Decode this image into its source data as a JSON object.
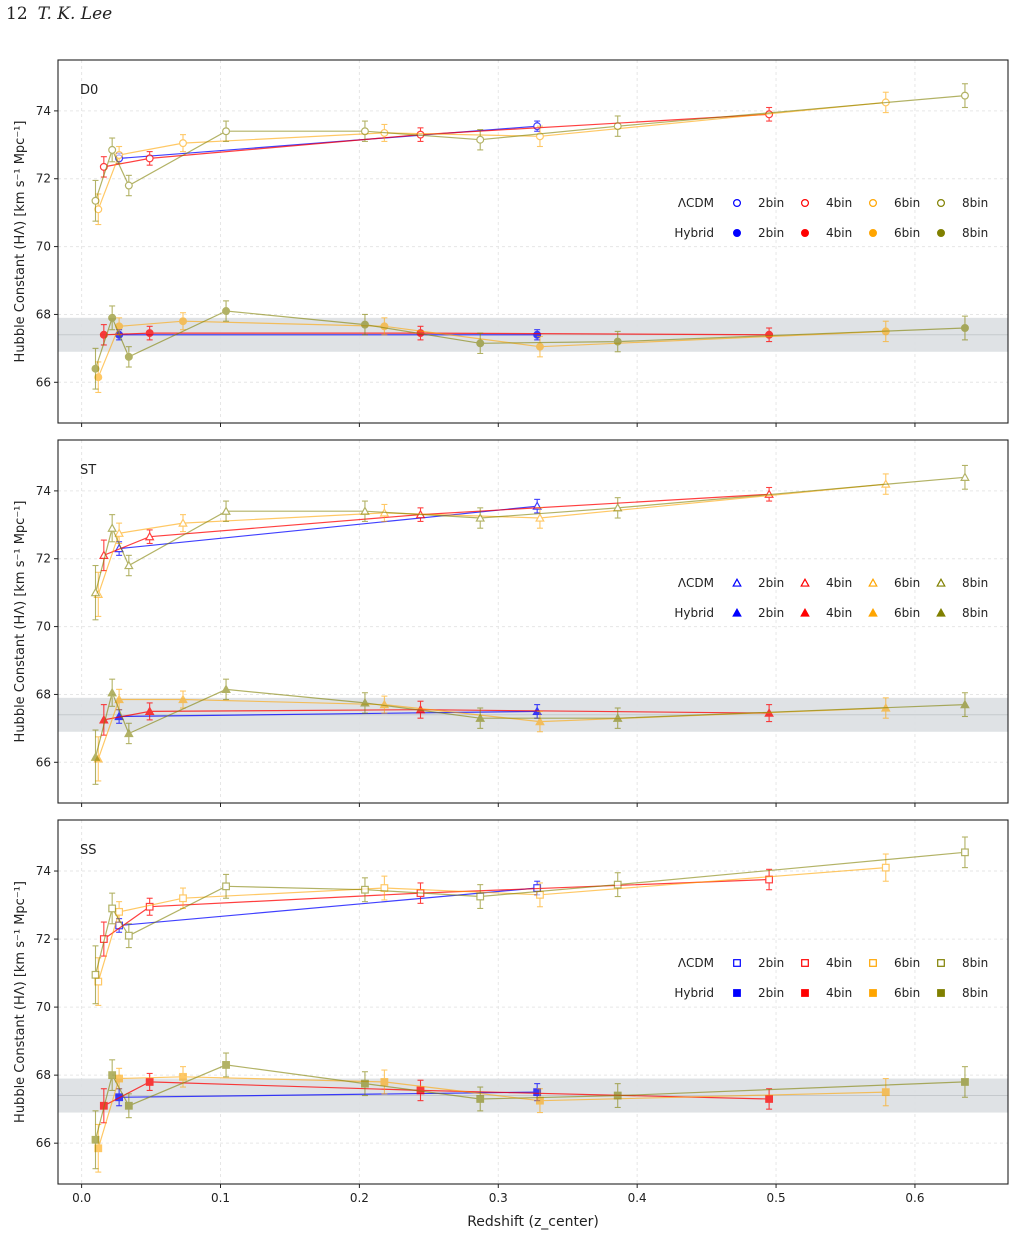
{
  "header": {
    "page_number": "12",
    "author": "T. K. Lee"
  },
  "colors": {
    "2bin": "#0000ff",
    "4bin": "#ff0000",
    "6bin": "#ffa500",
    "8bin": "#808000",
    "band": "#dcdfe2",
    "grid": "#e6e6e6"
  },
  "legend": {
    "row_labels": [
      "ΛCDM",
      "Hybrid"
    ],
    "bins": [
      "2bin",
      "4bin",
      "6bin",
      "8bin"
    ]
  },
  "chart_data": [
    {
      "type": "scatter",
      "panel_label": "D0",
      "marker": "circle",
      "xlabel": "Redshift (z_center)",
      "ylabel": "Hubble Constant (HΛ) [km s⁻¹ Mpc⁻¹]",
      "xlim": [
        -0.017,
        0.667
      ],
      "ylim": [
        64.8,
        75.5
      ],
      "xticks": [
        "0.0",
        "0.1",
        "0.2",
        "0.3",
        "0.4",
        "0.5",
        "0.6"
      ],
      "yticks": [
        "66",
        "68",
        "70",
        "72",
        "74"
      ],
      "grid": true,
      "reference_band": [
        66.9,
        67.9
      ],
      "legend_position": "right",
      "series": [
        {
          "name": "ΛCDM 2bin",
          "bin": "2bin",
          "model": "LCDM",
          "x": [
            0.027,
            0.328
          ],
          "y": [
            72.6,
            73.55
          ],
          "err": [
            0.15,
            0.15
          ]
        },
        {
          "name": "ΛCDM 4bin",
          "bin": "4bin",
          "model": "LCDM",
          "x": [
            0.016,
            0.049,
            0.244,
            0.495
          ],
          "y": [
            72.35,
            72.6,
            73.3,
            73.9
          ],
          "err": [
            0.3,
            0.2,
            0.2,
            0.2
          ]
        },
        {
          "name": "ΛCDM 6bin",
          "bin": "6bin",
          "model": "LCDM",
          "x": [
            0.012,
            0.027,
            0.073,
            0.218,
            0.33,
            0.579
          ],
          "y": [
            71.1,
            72.7,
            73.05,
            73.35,
            73.25,
            74.25
          ],
          "err": [
            0.45,
            0.25,
            0.25,
            0.25,
            0.3,
            0.3
          ]
        },
        {
          "name": "ΛCDM 8bin",
          "bin": "8bin",
          "model": "LCDM",
          "x": [
            0.01,
            0.022,
            0.034,
            0.104,
            0.204,
            0.287,
            0.386,
            0.636
          ],
          "y": [
            71.35,
            72.85,
            71.8,
            73.4,
            73.4,
            73.15,
            73.55,
            74.45
          ],
          "err": [
            0.6,
            0.35,
            0.3,
            0.3,
            0.3,
            0.3,
            0.3,
            0.35
          ]
        },
        {
          "name": "Hybrid 2bin",
          "bin": "2bin",
          "model": "Hybrid",
          "x": [
            0.027,
            0.328
          ],
          "y": [
            67.4,
            67.4
          ],
          "err": [
            0.15,
            0.15
          ]
        },
        {
          "name": "Hybrid 4bin",
          "bin": "4bin",
          "model": "Hybrid",
          "x": [
            0.016,
            0.049,
            0.244,
            0.495
          ],
          "y": [
            67.4,
            67.45,
            67.45,
            67.4
          ],
          "err": [
            0.3,
            0.2,
            0.2,
            0.2
          ]
        },
        {
          "name": "Hybrid 6bin",
          "bin": "6bin",
          "model": "Hybrid",
          "x": [
            0.012,
            0.027,
            0.073,
            0.218,
            0.33,
            0.579
          ],
          "y": [
            66.15,
            67.65,
            67.8,
            67.65,
            67.05,
            67.5
          ],
          "err": [
            0.45,
            0.25,
            0.25,
            0.25,
            0.3,
            0.3
          ]
        },
        {
          "name": "Hybrid 8bin",
          "bin": "8bin",
          "model": "Hybrid",
          "x": [
            0.01,
            0.022,
            0.034,
            0.104,
            0.204,
            0.287,
            0.386,
            0.636
          ],
          "y": [
            66.4,
            67.9,
            66.75,
            68.1,
            67.7,
            67.15,
            67.2,
            67.6
          ],
          "err": [
            0.6,
            0.35,
            0.3,
            0.3,
            0.3,
            0.3,
            0.3,
            0.35
          ]
        }
      ]
    },
    {
      "type": "scatter",
      "panel_label": "ST",
      "marker": "triangle",
      "xlabel": "Redshift (z_center)",
      "ylabel": "Hubble Constant (HΛ) [km s⁻¹ Mpc⁻¹]",
      "xlim": [
        -0.017,
        0.667
      ],
      "ylim": [
        64.8,
        75.5
      ],
      "xticks": [
        "0.0",
        "0.1",
        "0.2",
        "0.3",
        "0.4",
        "0.5",
        "0.6"
      ],
      "yticks": [
        "66",
        "68",
        "70",
        "72",
        "74"
      ],
      "grid": true,
      "reference_band": [
        66.9,
        67.9
      ],
      "legend_position": "right",
      "series": [
        {
          "name": "ΛCDM 2bin",
          "bin": "2bin",
          "model": "LCDM",
          "x": [
            0.027,
            0.328
          ],
          "y": [
            72.3,
            73.55
          ],
          "err": [
            0.2,
            0.2
          ]
        },
        {
          "name": "ΛCDM 4bin",
          "bin": "4bin",
          "model": "LCDM",
          "x": [
            0.016,
            0.049,
            0.244,
            0.495
          ],
          "y": [
            72.1,
            72.65,
            73.3,
            73.9
          ],
          "err": [
            0.45,
            0.2,
            0.2,
            0.2
          ]
        },
        {
          "name": "ΛCDM 6bin",
          "bin": "6bin",
          "model": "LCDM",
          "x": [
            0.012,
            0.027,
            0.073,
            0.218,
            0.33,
            0.579
          ],
          "y": [
            70.95,
            72.75,
            73.05,
            73.35,
            73.2,
            74.2
          ],
          "err": [
            0.65,
            0.3,
            0.25,
            0.25,
            0.3,
            0.3
          ]
        },
        {
          "name": "ΛCDM 8bin",
          "bin": "8bin",
          "model": "LCDM",
          "x": [
            0.01,
            0.022,
            0.034,
            0.104,
            0.204,
            0.287,
            0.386,
            0.636
          ],
          "y": [
            71.0,
            72.9,
            71.8,
            73.4,
            73.4,
            73.2,
            73.5,
            74.4
          ],
          "err": [
            0.8,
            0.4,
            0.3,
            0.3,
            0.3,
            0.3,
            0.3,
            0.35
          ]
        },
        {
          "name": "Hybrid 2bin",
          "bin": "2bin",
          "model": "Hybrid",
          "x": [
            0.027,
            0.328
          ],
          "y": [
            67.35,
            67.5
          ],
          "err": [
            0.2,
            0.2
          ]
        },
        {
          "name": "Hybrid 4bin",
          "bin": "4bin",
          "model": "Hybrid",
          "x": [
            0.016,
            0.049,
            0.244,
            0.495
          ],
          "y": [
            67.25,
            67.5,
            67.55,
            67.45
          ],
          "err": [
            0.45,
            0.25,
            0.25,
            0.25
          ]
        },
        {
          "name": "Hybrid 6bin",
          "bin": "6bin",
          "model": "Hybrid",
          "x": [
            0.012,
            0.027,
            0.073,
            0.218,
            0.33,
            0.579
          ],
          "y": [
            66.1,
            67.85,
            67.85,
            67.7,
            67.2,
            67.6
          ],
          "err": [
            0.65,
            0.3,
            0.25,
            0.25,
            0.3,
            0.3
          ]
        },
        {
          "name": "Hybrid 8bin",
          "bin": "8bin",
          "model": "Hybrid",
          "x": [
            0.01,
            0.022,
            0.034,
            0.104,
            0.204,
            0.287,
            0.386,
            0.636
          ],
          "y": [
            66.15,
            68.05,
            66.85,
            68.15,
            67.75,
            67.3,
            67.3,
            67.7
          ],
          "err": [
            0.8,
            0.4,
            0.3,
            0.3,
            0.3,
            0.3,
            0.3,
            0.35
          ]
        }
      ]
    },
    {
      "type": "scatter",
      "panel_label": "SS",
      "marker": "square",
      "xlabel": "Redshift (z_center)",
      "ylabel": "Hubble Constant (HΛ) [km s⁻¹ Mpc⁻¹]",
      "xlim": [
        -0.017,
        0.667
      ],
      "ylim": [
        64.8,
        75.5
      ],
      "xticks": [
        "0.0",
        "0.1",
        "0.2",
        "0.3",
        "0.4",
        "0.5",
        "0.6"
      ],
      "yticks": [
        "66",
        "68",
        "70",
        "72",
        "74"
      ],
      "grid": true,
      "reference_band": [
        66.9,
        67.9
      ],
      "legend_position": "right",
      "series": [
        {
          "name": "ΛCDM 2bin",
          "bin": "2bin",
          "model": "LCDM",
          "x": [
            0.027,
            0.328
          ],
          "y": [
            72.4,
            73.5
          ],
          "err": [
            0.2,
            0.2
          ]
        },
        {
          "name": "ΛCDM 4bin",
          "bin": "4bin",
          "model": "LCDM",
          "x": [
            0.016,
            0.049,
            0.244,
            0.495
          ],
          "y": [
            72.0,
            72.95,
            73.35,
            73.75
          ],
          "err": [
            0.5,
            0.25,
            0.3,
            0.3
          ]
        },
        {
          "name": "ΛCDM 6bin",
          "bin": "6bin",
          "model": "LCDM",
          "x": [
            0.012,
            0.027,
            0.073,
            0.218,
            0.33,
            0.579
          ],
          "y": [
            70.75,
            72.8,
            73.2,
            73.5,
            73.3,
            74.1
          ],
          "err": [
            0.7,
            0.3,
            0.3,
            0.35,
            0.35,
            0.4
          ]
        },
        {
          "name": "ΛCDM 8bin",
          "bin": "8bin",
          "model": "LCDM",
          "x": [
            0.01,
            0.022,
            0.034,
            0.104,
            0.204,
            0.287,
            0.386,
            0.636
          ],
          "y": [
            70.95,
            72.9,
            72.1,
            73.55,
            73.45,
            73.25,
            73.6,
            74.55
          ],
          "err": [
            0.85,
            0.45,
            0.35,
            0.35,
            0.35,
            0.35,
            0.35,
            0.45
          ]
        },
        {
          "name": "Hybrid 2bin",
          "bin": "2bin",
          "model": "Hybrid",
          "x": [
            0.027,
            0.328
          ],
          "y": [
            67.35,
            67.5
          ],
          "err": [
            0.25,
            0.25
          ]
        },
        {
          "name": "Hybrid 4bin",
          "bin": "4bin",
          "model": "Hybrid",
          "x": [
            0.016,
            0.049,
            0.244,
            0.495
          ],
          "y": [
            67.1,
            67.8,
            67.55,
            67.3
          ],
          "err": [
            0.5,
            0.25,
            0.3,
            0.3
          ]
        },
        {
          "name": "Hybrid 6bin",
          "bin": "6bin",
          "model": "Hybrid",
          "x": [
            0.012,
            0.027,
            0.073,
            0.218,
            0.33,
            0.579
          ],
          "y": [
            65.85,
            67.9,
            67.95,
            67.8,
            67.25,
            67.5
          ],
          "err": [
            0.7,
            0.3,
            0.3,
            0.35,
            0.35,
            0.4
          ]
        },
        {
          "name": "Hybrid 8bin",
          "bin": "8bin",
          "model": "Hybrid",
          "x": [
            0.01,
            0.022,
            0.034,
            0.104,
            0.204,
            0.287,
            0.386,
            0.636
          ],
          "y": [
            66.1,
            68.0,
            67.1,
            68.3,
            67.75,
            67.3,
            67.4,
            67.8
          ],
          "err": [
            0.85,
            0.45,
            0.35,
            0.35,
            0.35,
            0.35,
            0.35,
            0.45
          ]
        }
      ]
    }
  ]
}
